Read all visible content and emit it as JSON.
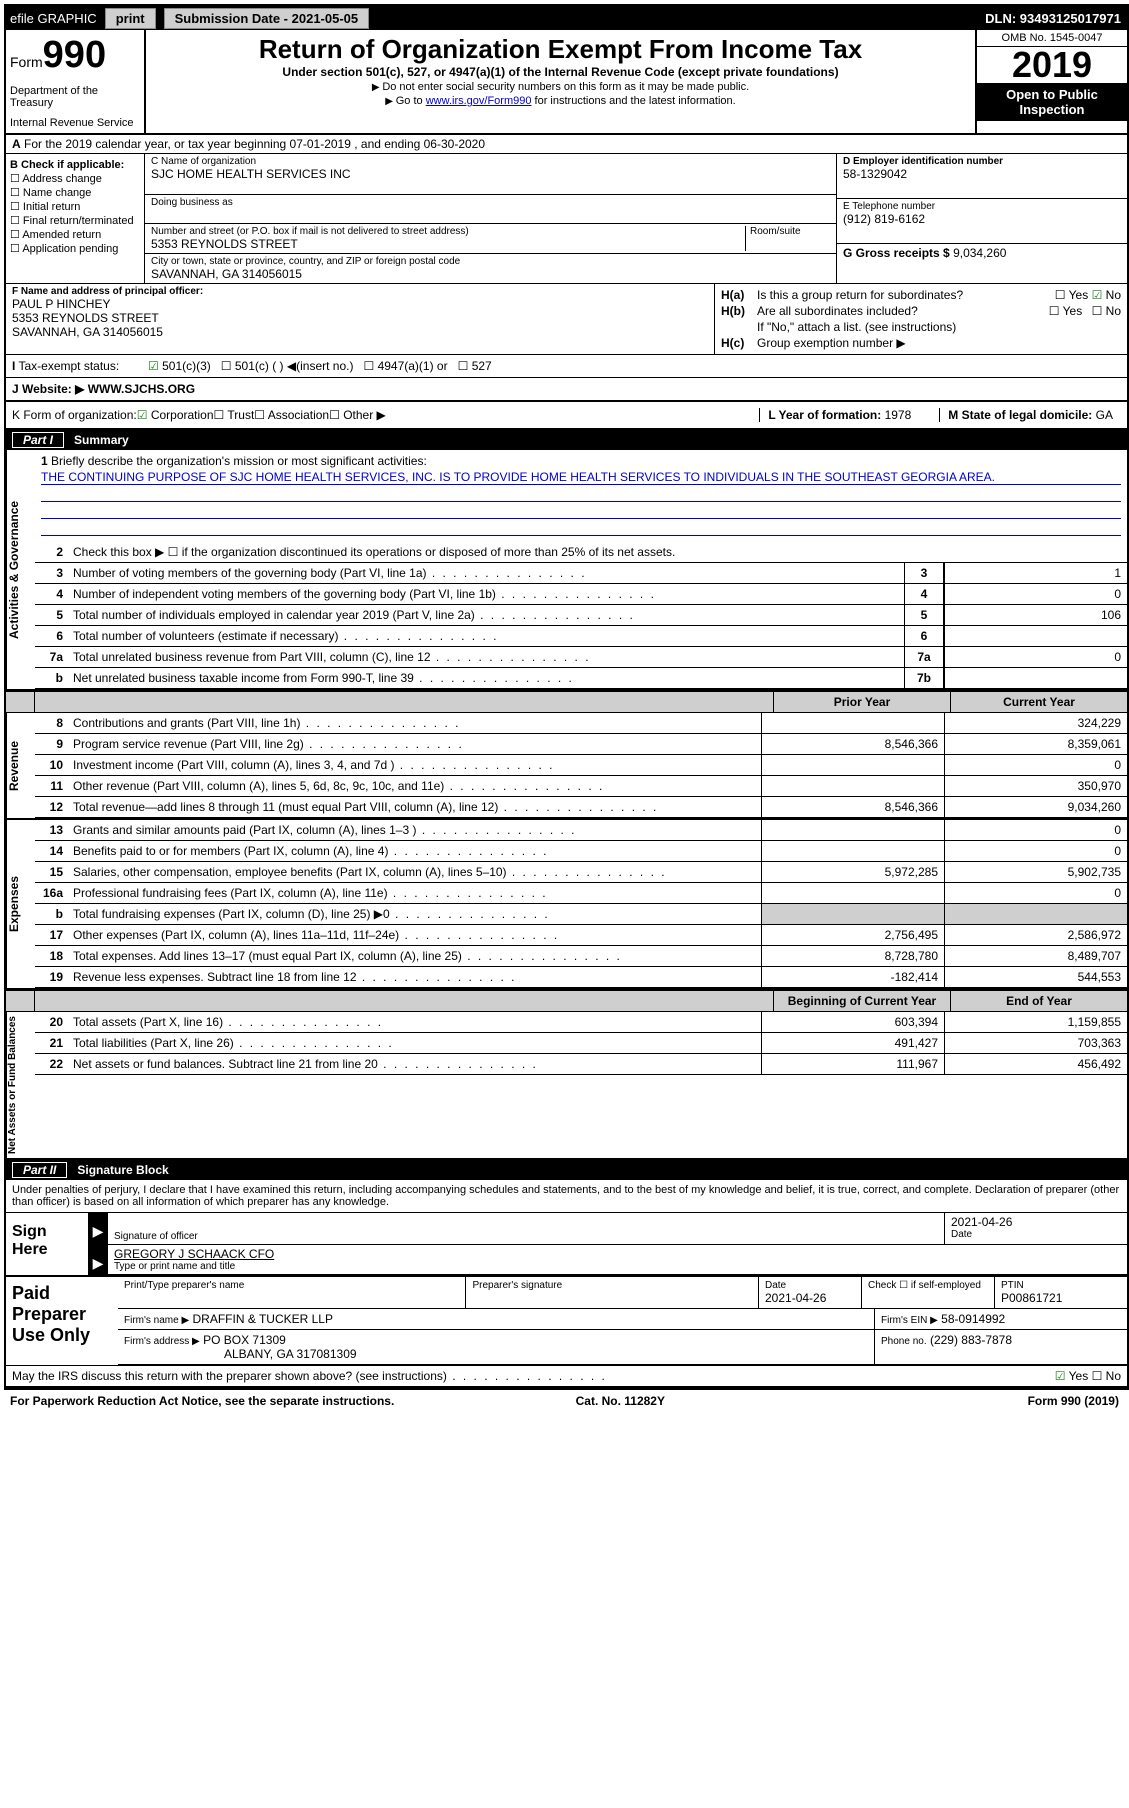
{
  "topbar": {
    "efile": "efile GRAPHIC",
    "print": "print",
    "sub_lbl": "Submission Date -",
    "sub_date": "2021-05-05",
    "dln": "DLN: 93493125017971"
  },
  "header": {
    "form": "Form",
    "num": "990",
    "dept": "Department of the Treasury",
    "irs": "Internal Revenue Service",
    "title": "Return of Organization Exempt From Income Tax",
    "sub": "Under section 501(c), 527, or 4947(a)(1) of the Internal Revenue Code (except private foundations)",
    "line1": "Do not enter social security numbers on this form as it may be made public.",
    "line2a": "Go to ",
    "line2link": "www.irs.gov/Form990",
    "line2b": " for instructions and the latest information.",
    "omb": "OMB No. 1545-0047",
    "year": "2019",
    "open": "Open to Public Inspection"
  },
  "sectionA": "For the 2019 calendar year, or tax year beginning 07-01-2019     , and ending 06-30-2020",
  "colB": {
    "hdr": "B Check if applicable:",
    "items": [
      "Address change",
      "Name change",
      "Initial return",
      "Final return/terminated",
      "Amended return",
      "Application pending"
    ]
  },
  "org": {
    "clabel": "C Name of organization",
    "name": "SJC HOME HEALTH SERVICES INC",
    "dba": "Doing business as",
    "addrlabel": "Number and street (or P.O. box if mail is not delivered to street address)",
    "addr": "5353 REYNOLDS STREET",
    "room": "Room/suite",
    "citylabel": "City or town, state or province, country, and ZIP or foreign postal code",
    "city": "SAVANNAH, GA  314056015"
  },
  "colD": {
    "einlabel": "D Employer identification number",
    "ein": "58-1329042",
    "tellabel": "E Telephone number",
    "tel": "(912) 819-6162",
    "grosslabel": "G Gross receipts $",
    "gross": "9,034,260"
  },
  "officer": {
    "label": "F  Name and address of principal officer:",
    "name": "PAUL P HINCHEY",
    "addr1": "5353 REYNOLDS STREET",
    "addr2": "SAVANNAH, GA  314056015"
  },
  "colH": {
    "ha": "Is this a group return for subordinates?",
    "hb": "Are all subordinates included?",
    "note": "If \"No,\" attach a list. (see instructions)",
    "hc": "Group exemption number ▶",
    "yes": "Yes",
    "no": "No"
  },
  "taxexempt": {
    "label": "Tax-exempt status:",
    "opt1": "501(c)(3)",
    "opt2": "501(c) (  ) ◀(insert no.)",
    "opt3": "4947(a)(1) or",
    "opt4": "527"
  },
  "website": {
    "label": "Website: ▶",
    "val": "WWW.SJCHS.ORG"
  },
  "formorg": {
    "k": "K Form of organization:",
    "opts": [
      "Corporation",
      "Trust",
      "Association",
      "Other ▶"
    ],
    "l": "L Year of formation:",
    "lval": "1978",
    "m": "M State of legal domicile:",
    "mval": "GA"
  },
  "part1": {
    "tag": "Part I",
    "title": "Summary"
  },
  "mission": {
    "lbl": "Briefly describe the organization's mission or most significant activities:",
    "txt": "THE CONTINUING PURPOSE OF SJC HOME HEALTH SERVICES, INC. IS TO PROVIDE HOME HEALTH SERVICES TO INDIVIDUALS IN THE SOUTHEAST GEORGIA AREA."
  },
  "govlines": {
    "l2": "Check this box ▶ ☐  if the organization discontinued its operations or disposed of more than 25% of its net assets.",
    "l3": {
      "d": "Number of voting members of the governing body (Part VI, line 1a)",
      "n": "3",
      "v": "1"
    },
    "l4": {
      "d": "Number of independent voting members of the governing body (Part VI, line 1b)",
      "n": "4",
      "v": "0"
    },
    "l5": {
      "d": "Total number of individuals employed in calendar year 2019 (Part V, line 2a)",
      "n": "5",
      "v": "106"
    },
    "l6": {
      "d": "Total number of volunteers (estimate if necessary)",
      "n": "6",
      "v": ""
    },
    "l7a": {
      "d": "Total unrelated business revenue from Part VIII, column (C), line 12",
      "n": "7a",
      "v": "0"
    },
    "l7b": {
      "d": "Net unrelated business taxable income from Form 990-T, line 39",
      "n": "7b",
      "v": ""
    }
  },
  "colhdrs": {
    "prior": "Prior Year",
    "current": "Current Year",
    "begin": "Beginning of Current Year",
    "end": "End of Year"
  },
  "revenue": [
    {
      "n": "8",
      "d": "Contributions and grants (Part VIII, line 1h)",
      "p": "",
      "c": "324,229"
    },
    {
      "n": "9",
      "d": "Program service revenue (Part VIII, line 2g)",
      "p": "8,546,366",
      "c": "8,359,061"
    },
    {
      "n": "10",
      "d": "Investment income (Part VIII, column (A), lines 3, 4, and 7d )",
      "p": "",
      "c": "0"
    },
    {
      "n": "11",
      "d": "Other revenue (Part VIII, column (A), lines 5, 6d, 8c, 9c, 10c, and 11e)",
      "p": "",
      "c": "350,970"
    },
    {
      "n": "12",
      "d": "Total revenue—add lines 8 through 11 (must equal Part VIII, column (A), line 12)",
      "p": "8,546,366",
      "c": "9,034,260"
    }
  ],
  "expenses": [
    {
      "n": "13",
      "d": "Grants and similar amounts paid (Part IX, column (A), lines 1–3 )",
      "p": "",
      "c": "0"
    },
    {
      "n": "14",
      "d": "Benefits paid to or for members (Part IX, column (A), line 4)",
      "p": "",
      "c": "0"
    },
    {
      "n": "15",
      "d": "Salaries, other compensation, employee benefits (Part IX, column (A), lines 5–10)",
      "p": "5,972,285",
      "c": "5,902,735"
    },
    {
      "n": "16a",
      "d": "Professional fundraising fees (Part IX, column (A), line 11e)",
      "p": "",
      "c": "0"
    },
    {
      "n": "b",
      "d": "Total fundraising expenses (Part IX, column (D), line 25) ▶0",
      "p": "shade",
      "c": "shade"
    },
    {
      "n": "17",
      "d": "Other expenses (Part IX, column (A), lines 11a–11d, 11f–24e)",
      "p": "2,756,495",
      "c": "2,586,972"
    },
    {
      "n": "18",
      "d": "Total expenses. Add lines 13–17 (must equal Part IX, column (A), line 25)",
      "p": "8,728,780",
      "c": "8,489,707"
    },
    {
      "n": "19",
      "d": "Revenue less expenses. Subtract line 18 from line 12",
      "p": "-182,414",
      "c": "544,553"
    }
  ],
  "netassets": [
    {
      "n": "20",
      "d": "Total assets (Part X, line 16)",
      "p": "603,394",
      "c": "1,159,855"
    },
    {
      "n": "21",
      "d": "Total liabilities (Part X, line 26)",
      "p": "491,427",
      "c": "703,363"
    },
    {
      "n": "22",
      "d": "Net assets or fund balances. Subtract line 21 from line 20",
      "p": "111,967",
      "c": "456,492"
    }
  ],
  "vtabs": {
    "gov": "Activities & Governance",
    "rev": "Revenue",
    "exp": "Expenses",
    "net": "Net Assets or Fund Balances"
  },
  "part2": {
    "tag": "Part II",
    "title": "Signature Block"
  },
  "sig": {
    "decl": "Under penalties of perjury, I declare that I have examined this return, including accompanying schedules and statements, and to the best of my knowledge and belief, it is true, correct, and complete. Declaration of preparer (other than officer) is based on all information of which preparer has any knowledge.",
    "here": "Sign Here",
    "soff": "Signature of officer",
    "date": "Date",
    "dateval": "2021-04-26",
    "name": "GREGORY J SCHAACK CFO",
    "typelbl": "Type or print name and title"
  },
  "paid": {
    "title": "Paid Preparer Use Only",
    "h1": "Print/Type preparer's name",
    "h2": "Preparer's signature",
    "h3": "Date",
    "h3v": "2021-04-26",
    "h4": "Check ☐ if self-employed",
    "h5": "PTIN",
    "h5v": "P00861721",
    "firm": "Firm's name    ▶",
    "firmv": "DRAFFIN & TUCKER LLP",
    "ein": "Firm's EIN ▶",
    "einv": "58-0914992",
    "addr": "Firm's address ▶",
    "addrv": "PO BOX 71309",
    "addrv2": "ALBANY, GA  317081309",
    "phone": "Phone no.",
    "phonev": "(229) 883-7878"
  },
  "irsline": {
    "txt": "May the IRS discuss this return with the preparer shown above? (see instructions)",
    "yes": "Yes",
    "no": "No"
  },
  "footer": {
    "l": "For Paperwork Reduction Act Notice, see the separate instructions.",
    "c": "Cat. No. 11282Y",
    "r": "Form 990 (2019)"
  }
}
